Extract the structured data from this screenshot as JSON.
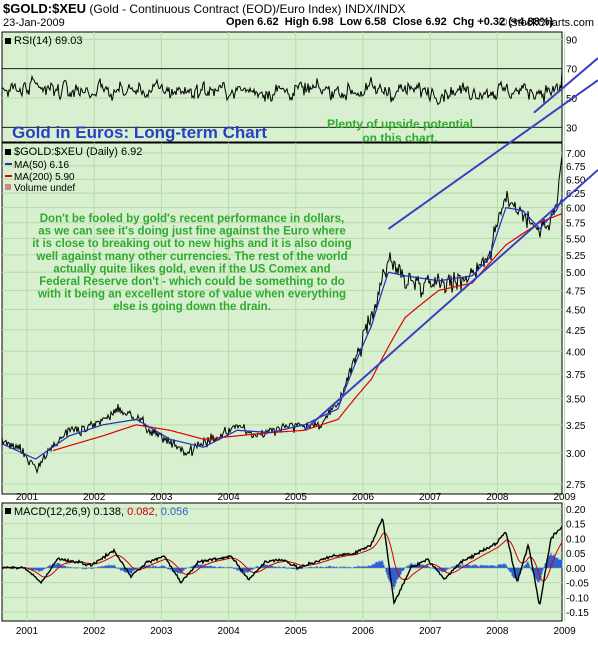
{
  "header": {
    "symbol": "$GOLD:$XEU",
    "description": "(Gold - Continuous Contract (EOD)/Euro Index)",
    "exchange": "INDX/INDX",
    "date": "23-Jan-2009",
    "watermark": "© StockCharts.com",
    "open": "Open 6.62",
    "high": "High 6.98",
    "low": "Low 6.58",
    "close": "Close 6.92",
    "change": "Chg +0.32 (+4.88%)"
  },
  "rsi_panel": {
    "label": "RSI(14) 69.03",
    "ticks": [
      {
        "value": 90,
        "text": "90"
      },
      {
        "value": 70,
        "text": "70"
      },
      {
        "value": 50,
        "text": "50"
      },
      {
        "value": 30,
        "text": "30"
      }
    ],
    "upper_band": 70,
    "lower_band": 30
  },
  "price_panel": {
    "legend_symbol": "$GOLD:$XEU (Daily) 6.92",
    "legend_ma50": "MA(50) 6.16",
    "legend_ma200": "MA(200) 5.90",
    "legend_volume": "Volume undef"
  },
  "macd_panel": {
    "label_main": "MACD(12,26,9) 0.138,",
    "label_signal": "0.082,",
    "label_hist": "0.056",
    "ticks": [
      "0.20",
      "0.15",
      "0.10",
      "0.05",
      "0.00",
      "-0.05",
      "-0.10",
      "-0.15"
    ]
  },
  "annotations": {
    "title": "Gold in Euros: Long-term Chart",
    "upside_line1": "Plenty of upside potential",
    "upside_line2": "on this chart.",
    "body": [
      "Don't be fooled by gold's recent performance in dollars,",
      "as we can see it's doing just fine against the Euro where",
      "it is close to breaking out to new highs and it is also doing",
      "well against many other currencies. The rest of the world",
      "actually quite likes gold, even if the US Comex and",
      "Federal Reserve don't - which could be something to do",
      "with it being an excellent store of value when everything",
      "else is going down the drain."
    ]
  },
  "colors": {
    "panel_bg": "#d8f0cf",
    "grid": "#b3dca8",
    "price": "#000000",
    "ma50": "#1f2dbf",
    "ma200": "#e00000",
    "trendline": "#3a3fc4",
    "macd_line": "#000000",
    "macd_signal": "#d00000",
    "macd_hist": "#3060d0",
    "annotation_green": "#2faa2f",
    "annotation_blue": "#2a3fc8"
  },
  "chart_data": {
    "type": "line",
    "title": "Gold in Euros: Long-term Chart",
    "x_axis_labels": [
      "2001",
      "2002",
      "2003",
      "2004",
      "2005",
      "2006",
      "2007",
      "2008",
      "2009"
    ],
    "price_ylim": [
      2.75,
      7.0
    ],
    "price_ticks": [
      "7.00",
      "6.75",
      "6.50",
      "6.25",
      "6.00",
      "5.75",
      "5.50",
      "5.25",
      "5.00",
      "4.75",
      "4.50",
      "4.25",
      "4.00",
      "3.75",
      "3.50",
      "3.25",
      "3.00",
      "2.75"
    ],
    "price_scale": "log",
    "series": [
      {
        "name": "$GOLD:$XEU",
        "points": [
          [
            "2000-09",
            3.1
          ],
          [
            "2000-12",
            3.05
          ],
          [
            "2001-03",
            2.88
          ],
          [
            "2001-06",
            3.05
          ],
          [
            "2001-09",
            3.2
          ],
          [
            "2001-12",
            3.2
          ],
          [
            "2002-03",
            3.3
          ],
          [
            "2002-06",
            3.4
          ],
          [
            "2002-09",
            3.3
          ],
          [
            "2002-12",
            3.2
          ],
          [
            "2003-03",
            3.1
          ],
          [
            "2003-06",
            3.0
          ],
          [
            "2003-09",
            3.1
          ],
          [
            "2003-12",
            3.15
          ],
          [
            "2004-03",
            3.25
          ],
          [
            "2004-06",
            3.15
          ],
          [
            "2004-09",
            3.2
          ],
          [
            "2004-12",
            3.25
          ],
          [
            "2005-03",
            3.25
          ],
          [
            "2005-06",
            3.25
          ],
          [
            "2005-09",
            3.45
          ],
          [
            "2005-12",
            3.9
          ],
          [
            "2006-03",
            4.4
          ],
          [
            "2006-06",
            5.2
          ],
          [
            "2006-09",
            4.9
          ],
          [
            "2006-12",
            4.85
          ],
          [
            "2007-03",
            4.9
          ],
          [
            "2007-06",
            4.85
          ],
          [
            "2007-09",
            5.0
          ],
          [
            "2007-12",
            5.25
          ],
          [
            "2008-03",
            6.2
          ],
          [
            "2008-06",
            5.9
          ],
          [
            "2008-09",
            5.6
          ],
          [
            "2008-12",
            6.0
          ],
          [
            "2009-01",
            6.92
          ]
        ]
      },
      {
        "name": "MA(50)",
        "points": [
          [
            "2000-09",
            3.08
          ],
          [
            "2001-03",
            2.95
          ],
          [
            "2001-09",
            3.15
          ],
          [
            "2002-03",
            3.25
          ],
          [
            "2002-09",
            3.3
          ],
          [
            "2003-03",
            3.12
          ],
          [
            "2003-09",
            3.05
          ],
          [
            "2004-03",
            3.2
          ],
          [
            "2004-09",
            3.18
          ],
          [
            "2005-03",
            3.25
          ],
          [
            "2005-09",
            3.4
          ],
          [
            "2005-12",
            3.85
          ],
          [
            "2006-03",
            4.3
          ],
          [
            "2006-06",
            5.0
          ],
          [
            "2006-09",
            4.95
          ],
          [
            "2007-03",
            4.88
          ],
          [
            "2007-09",
            4.95
          ],
          [
            "2007-12",
            5.2
          ],
          [
            "2008-03",
            6.0
          ],
          [
            "2008-06",
            5.95
          ],
          [
            "2008-09",
            5.65
          ],
          [
            "2008-12",
            5.95
          ],
          [
            "2009-01",
            6.16
          ]
        ]
      },
      {
        "name": "MA(200)",
        "points": [
          [
            "2001-06",
            3.02
          ],
          [
            "2002-03",
            3.15
          ],
          [
            "2002-09",
            3.25
          ],
          [
            "2003-03",
            3.2
          ],
          [
            "2003-09",
            3.12
          ],
          [
            "2004-03",
            3.15
          ],
          [
            "2004-09",
            3.18
          ],
          [
            "2005-03",
            3.2
          ],
          [
            "2005-09",
            3.3
          ],
          [
            "2006-03",
            3.7
          ],
          [
            "2006-09",
            4.4
          ],
          [
            "2007-03",
            4.75
          ],
          [
            "2007-09",
            4.85
          ],
          [
            "2008-03",
            5.4
          ],
          [
            "2008-09",
            5.75
          ],
          [
            "2009-01",
            5.9
          ]
        ]
      }
    ],
    "rsi": {
      "name": "RSI(14)",
      "ylim": [
        20,
        95
      ],
      "last": 69.03
    },
    "macd": {
      "name": "MACD(12,26,9)",
      "ylim": [
        -0.18,
        0.22
      ],
      "last": {
        "macd": 0.138,
        "signal": 0.082,
        "histogram": 0.056
      },
      "points": [
        [
          "2001-01",
          0.0
        ],
        [
          "2001-04",
          -0.05
        ],
        [
          "2001-07",
          0.03
        ],
        [
          "2001-10",
          0.02
        ],
        [
          "2002-01",
          0.01
        ],
        [
          "2002-05",
          0.06
        ],
        [
          "2002-08",
          -0.03
        ],
        [
          "2002-11",
          0.02
        ],
        [
          "2003-02",
          0.04
        ],
        [
          "2003-05",
          -0.05
        ],
        [
          "2003-08",
          0.02
        ],
        [
          "2003-11",
          0.03
        ],
        [
          "2004-02",
          0.04
        ],
        [
          "2004-05",
          -0.04
        ],
        [
          "2004-08",
          0.02
        ],
        [
          "2004-11",
          0.03
        ],
        [
          "2005-02",
          0.0
        ],
        [
          "2005-05",
          0.02
        ],
        [
          "2005-08",
          0.04
        ],
        [
          "2005-12",
          0.05
        ],
        [
          "2006-03",
          0.08
        ],
        [
          "2006-05",
          0.17
        ],
        [
          "2006-07",
          -0.12
        ],
        [
          "2006-10",
          0.0
        ],
        [
          "2007-01",
          0.03
        ],
        [
          "2007-04",
          -0.04
        ],
        [
          "2007-07",
          0.02
        ],
        [
          "2007-10",
          0.05
        ],
        [
          "2008-01",
          0.08
        ],
        [
          "2008-03",
          0.12
        ],
        [
          "2008-05",
          -0.05
        ],
        [
          "2008-07",
          0.08
        ],
        [
          "2008-09",
          -0.13
        ],
        [
          "2008-11",
          0.1
        ],
        [
          "2009-01",
          0.138
        ]
      ]
    },
    "trendlines": [
      {
        "name": "upper-channel",
        "from": [
          "2006-06",
          5.65
        ],
        "to": [
          "2009-01",
          8.0
        ]
      },
      {
        "name": "lower-channel",
        "from": [
          "2005-03",
          3.2
        ],
        "to": [
          "2009-01",
          6.1
        ]
      },
      {
        "name": "rsi-support",
        "from": [
          "2008-08",
          40
        ],
        "to": [
          "2009-01",
          65
        ]
      }
    ]
  }
}
